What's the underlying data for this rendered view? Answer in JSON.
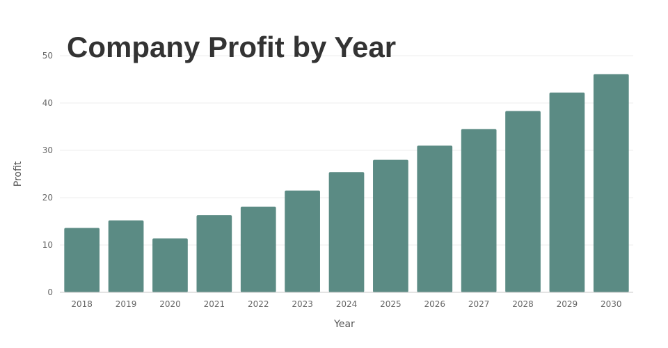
{
  "chart_data": {
    "type": "bar",
    "title": "Company Profit by Year",
    "xlabel": "Year",
    "ylabel": "Profit",
    "categories": [
      "2018",
      "2019",
      "2020",
      "2021",
      "2022",
      "2023",
      "2024",
      "2025",
      "2026",
      "2027",
      "2028",
      "2029",
      "2030"
    ],
    "values": [
      13.6,
      15.2,
      11.4,
      16.3,
      18.1,
      21.5,
      25.4,
      28.0,
      31.0,
      34.5,
      38.3,
      42.2,
      46.1
    ],
    "ylim": [
      0,
      50
    ],
    "yticks": [
      "0",
      "10",
      "20",
      "30",
      "40",
      "50"
    ],
    "grid": true,
    "colors": {
      "bar": "#5b8b84"
    }
  }
}
